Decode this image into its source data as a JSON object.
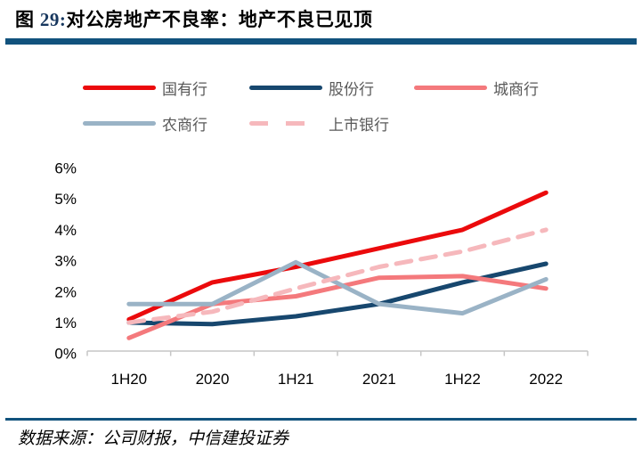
{
  "title": {
    "prefix": "图 ",
    "number": "29:",
    "text": "对公房地产不良率：地产不良已见顶"
  },
  "footer": {
    "source_text": "数据来源：公司财报，中信建投证券"
  },
  "colors": {
    "brand_blue": "#11527D",
    "axis_line": "#C6C6C6",
    "axis_text": "#000000",
    "legend_text": "#595959"
  },
  "chart_data": {
    "type": "line",
    "categories": [
      "1H20",
      "2020",
      "1H21",
      "2021",
      "1H22",
      "2022"
    ],
    "series": [
      {
        "name": "国有行",
        "color": "#EB0A0C",
        "style": "solid",
        "values": [
          1.1,
          2.3,
          2.8,
          3.4,
          4.0,
          5.2
        ]
      },
      {
        "name": "股份行",
        "color": "#17476E",
        "style": "solid",
        "values": [
          1.0,
          0.95,
          1.2,
          1.6,
          2.3,
          2.9
        ]
      },
      {
        "name": "城商行",
        "color": "#F4797C",
        "style": "solid",
        "values": [
          0.5,
          1.6,
          1.85,
          2.45,
          2.5,
          2.1
        ]
      },
      {
        "name": "农商行",
        "color": "#9AB3C6",
        "style": "solid",
        "values": [
          1.6,
          1.6,
          2.95,
          1.6,
          1.3,
          2.4
        ]
      },
      {
        "name": "上市银行",
        "color": "#F6B8BC",
        "style": "dashed",
        "values": [
          1.0,
          1.35,
          2.1,
          2.8,
          3.3,
          4.0
        ]
      }
    ],
    "y_ticks": [
      "0%",
      "1%",
      "2%",
      "3%",
      "4%",
      "5%",
      "6%"
    ],
    "ylim": [
      0,
      6
    ],
    "xlabel": "",
    "ylabel": "",
    "grid": false,
    "legend_position": "top-left-two-rows"
  }
}
